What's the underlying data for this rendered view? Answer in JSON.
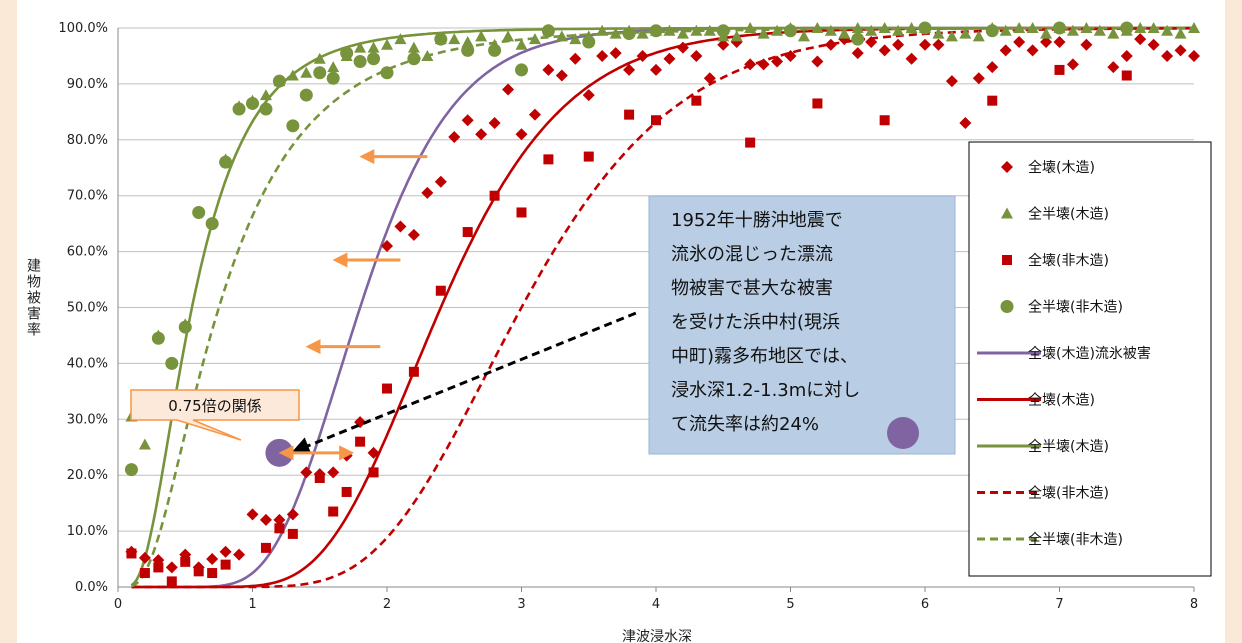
{
  "chart_data": {
    "type": "scatter",
    "xlabel": "津波浸水深",
    "ylabel": "建物被害率",
    "xlim": [
      0,
      8
    ],
    "ylim": [
      0,
      100
    ],
    "x_ticks": [
      "0",
      "1",
      "2",
      "3",
      "4",
      "5",
      "6",
      "7",
      "8"
    ],
    "y_ticks": [
      "0.0%",
      "10.0%",
      "20.0%",
      "30.0%",
      "40.0%",
      "50.0%",
      "60.0%",
      "70.0%",
      "80.0%",
      "90.0%",
      "100.0%"
    ],
    "grid": "horizontal",
    "legend_position": "right",
    "scatter_series": [
      {
        "name": "全壊(木造)",
        "marker": "diamond",
        "color": "#c00000",
        "points": [
          [
            0.1,
            6.3
          ],
          [
            0.2,
            5.2
          ],
          [
            0.3,
            4.8
          ],
          [
            0.4,
            3.5
          ],
          [
            0.5,
            5.8
          ],
          [
            0.6,
            3.5
          ],
          [
            0.7,
            5.0
          ],
          [
            0.8,
            6.3
          ],
          [
            0.9,
            5.8
          ],
          [
            1.0,
            13.0
          ],
          [
            1.1,
            12.0
          ],
          [
            1.2,
            12.0
          ],
          [
            1.3,
            13.0
          ],
          [
            1.4,
            20.5
          ],
          [
            1.5,
            20.2
          ],
          [
            1.6,
            20.5
          ],
          [
            1.7,
            23.5
          ],
          [
            1.8,
            29.5
          ],
          [
            1.9,
            24.0
          ],
          [
            2.0,
            61.0
          ],
          [
            2.1,
            64.5
          ],
          [
            2.2,
            63.0
          ],
          [
            2.3,
            70.5
          ],
          [
            2.4,
            72.5
          ],
          [
            2.5,
            80.5
          ],
          [
            2.6,
            83.5
          ],
          [
            2.7,
            81.0
          ],
          [
            2.8,
            83.0
          ],
          [
            2.9,
            89.0
          ],
          [
            3.0,
            81.0
          ],
          [
            3.1,
            84.5
          ],
          [
            3.2,
            92.5
          ],
          [
            3.3,
            91.5
          ],
          [
            3.4,
            94.5
          ],
          [
            3.5,
            88.0
          ],
          [
            3.6,
            95.0
          ],
          [
            3.7,
            95.5
          ],
          [
            3.8,
            92.5
          ],
          [
            3.9,
            95.0
          ],
          [
            4.0,
            92.5
          ],
          [
            4.1,
            94.5
          ],
          [
            4.2,
            96.5
          ],
          [
            4.3,
            95.0
          ],
          [
            4.4,
            91.0
          ],
          [
            4.5,
            97.0
          ],
          [
            4.6,
            97.5
          ],
          [
            4.7,
            93.5
          ],
          [
            4.8,
            93.5
          ],
          [
            4.9,
            94.0
          ],
          [
            5.0,
            95.0
          ],
          [
            5.2,
            94.0
          ],
          [
            5.3,
            97.0
          ],
          [
            5.4,
            98.0
          ],
          [
            5.5,
            95.5
          ],
          [
            5.6,
            97.5
          ],
          [
            5.7,
            96.0
          ],
          [
            5.8,
            97.0
          ],
          [
            5.9,
            94.5
          ],
          [
            6.0,
            97.0
          ],
          [
            6.1,
            97.0
          ],
          [
            6.2,
            90.5
          ],
          [
            6.3,
            83.0
          ],
          [
            6.4,
            91.0
          ],
          [
            6.5,
            93.0
          ],
          [
            6.6,
            96.0
          ],
          [
            6.7,
            97.5
          ],
          [
            6.8,
            96.0
          ],
          [
            6.9,
            97.5
          ],
          [
            7.0,
            97.5
          ],
          [
            7.1,
            93.5
          ],
          [
            7.2,
            97.0
          ],
          [
            7.4,
            93.0
          ],
          [
            7.5,
            95.0
          ],
          [
            7.6,
            98.0
          ],
          [
            7.7,
            97.0
          ],
          [
            7.8,
            95.0
          ],
          [
            7.9,
            96.0
          ],
          [
            8.0,
            95.0
          ]
        ]
      },
      {
        "name": "全半壊(木造)",
        "marker": "triangle",
        "color": "#77933c",
        "points": [
          [
            0.1,
            30.5
          ],
          [
            0.2,
            25.5
          ],
          [
            0.3,
            45.0
          ],
          [
            0.5,
            47.0
          ],
          [
            0.8,
            76.5
          ],
          [
            0.9,
            86.0
          ],
          [
            1.0,
            87.0
          ],
          [
            1.1,
            88.0
          ],
          [
            1.2,
            90.5
          ],
          [
            1.3,
            91.5
          ],
          [
            1.4,
            92.0
          ],
          [
            1.5,
            94.5
          ],
          [
            1.6,
            93.0
          ],
          [
            1.7,
            95.0
          ],
          [
            1.8,
            96.5
          ],
          [
            1.9,
            96.5
          ],
          [
            2.0,
            97.0
          ],
          [
            2.1,
            98.0
          ],
          [
            2.2,
            96.5
          ],
          [
            2.3,
            95.0
          ],
          [
            2.4,
            98.0
          ],
          [
            2.5,
            98.0
          ],
          [
            2.6,
            97.5
          ],
          [
            2.7,
            98.5
          ],
          [
            2.8,
            97.0
          ],
          [
            2.9,
            98.5
          ],
          [
            3.0,
            97.0
          ],
          [
            3.1,
            98.0
          ],
          [
            3.2,
            99.5
          ],
          [
            3.3,
            98.5
          ],
          [
            3.4,
            98.0
          ],
          [
            3.5,
            98.5
          ],
          [
            3.6,
            99.5
          ],
          [
            3.7,
            99.0
          ],
          [
            3.8,
            99.5
          ],
          [
            3.9,
            99.0
          ],
          [
            4.0,
            99.5
          ],
          [
            4.1,
            99.5
          ],
          [
            4.2,
            99.0
          ],
          [
            4.3,
            99.5
          ],
          [
            4.4,
            99.5
          ],
          [
            4.5,
            98.5
          ],
          [
            4.6,
            98.5
          ],
          [
            4.7,
            100
          ],
          [
            4.8,
            99.0
          ],
          [
            4.9,
            99.5
          ],
          [
            5.0,
            100
          ],
          [
            5.1,
            98.5
          ],
          [
            5.2,
            100
          ],
          [
            5.3,
            99.5
          ],
          [
            5.4,
            99.0
          ],
          [
            5.5,
            100
          ],
          [
            5.6,
            99.5
          ],
          [
            5.7,
            100
          ],
          [
            5.8,
            99.5
          ],
          [
            5.9,
            100
          ],
          [
            6.0,
            100
          ],
          [
            6.1,
            99.0
          ],
          [
            6.2,
            98.5
          ],
          [
            6.3,
            99.0
          ],
          [
            6.4,
            98.5
          ],
          [
            6.5,
            100
          ],
          [
            6.6,
            99.5
          ],
          [
            6.7,
            100
          ],
          [
            6.8,
            100
          ],
          [
            6.9,
            99.0
          ],
          [
            7.0,
            100
          ],
          [
            7.1,
            99.5
          ],
          [
            7.2,
            100
          ],
          [
            7.3,
            99.5
          ],
          [
            7.4,
            99.0
          ],
          [
            7.5,
            99.5
          ],
          [
            7.6,
            100
          ],
          [
            7.7,
            100
          ],
          [
            7.8,
            99.5
          ],
          [
            7.9,
            99.0
          ],
          [
            8.0,
            100
          ]
        ]
      },
      {
        "name": "全壊(非木造)",
        "marker": "square",
        "color": "#c00000",
        "points": [
          [
            0.1,
            6.0
          ],
          [
            0.2,
            2.5
          ],
          [
            0.3,
            3.5
          ],
          [
            0.4,
            1.0
          ],
          [
            0.5,
            4.5
          ],
          [
            0.6,
            2.8
          ],
          [
            0.7,
            2.5
          ],
          [
            0.8,
            4.0
          ],
          [
            1.1,
            7.0
          ],
          [
            1.2,
            10.5
          ],
          [
            1.3,
            9.5
          ],
          [
            1.5,
            19.5
          ],
          [
            1.6,
            13.5
          ],
          [
            1.7,
            17.0
          ],
          [
            1.8,
            26.0
          ],
          [
            1.9,
            20.5
          ],
          [
            2.0,
            35.5
          ],
          [
            2.2,
            38.5
          ],
          [
            2.4,
            53.0
          ],
          [
            2.6,
            63.5
          ],
          [
            2.8,
            70.0
          ],
          [
            3.0,
            67.0
          ],
          [
            3.2,
            76.5
          ],
          [
            3.5,
            77.0
          ],
          [
            3.8,
            84.5
          ],
          [
            4.0,
            83.5
          ],
          [
            4.3,
            87.0
          ],
          [
            4.7,
            79.5
          ],
          [
            5.2,
            86.5
          ],
          [
            5.7,
            83.5
          ],
          [
            6.5,
            87.0
          ],
          [
            7.0,
            92.5
          ],
          [
            7.5,
            91.5
          ]
        ]
      },
      {
        "name": "全半壊(非木造)",
        "marker": "circle",
        "color": "#77933c",
        "points": [
          [
            0.1,
            21.0
          ],
          [
            0.3,
            44.5
          ],
          [
            0.4,
            40.0
          ],
          [
            0.5,
            46.5
          ],
          [
            0.6,
            67.0
          ],
          [
            0.7,
            65.0
          ],
          [
            0.8,
            76.0
          ],
          [
            0.9,
            85.5
          ],
          [
            1.0,
            86.5
          ],
          [
            1.1,
            85.5
          ],
          [
            1.2,
            90.5
          ],
          [
            1.3,
            82.5
          ],
          [
            1.4,
            88.0
          ],
          [
            1.5,
            92.0
          ],
          [
            1.6,
            91.0
          ],
          [
            1.7,
            95.5
          ],
          [
            1.8,
            94.0
          ],
          [
            1.9,
            94.5
          ],
          [
            2.0,
            92.0
          ],
          [
            2.2,
            94.5
          ],
          [
            2.4,
            98.0
          ],
          [
            2.6,
            96.0
          ],
          [
            2.8,
            96.0
          ],
          [
            3.0,
            92.5
          ],
          [
            3.2,
            99.5
          ],
          [
            3.5,
            97.5
          ],
          [
            3.8,
            99.0
          ],
          [
            4.0,
            99.5
          ],
          [
            4.5,
            99.5
          ],
          [
            5.0,
            99.5
          ],
          [
            5.5,
            98.0
          ],
          [
            6.0,
            100
          ],
          [
            6.5,
            99.5
          ],
          [
            7.0,
            100
          ],
          [
            7.5,
            100
          ]
        ]
      }
    ],
    "line_series": [
      {
        "name": "全壊(木造)流氷被害",
        "color": "#8064a2",
        "dash": "solid",
        "median": 1.8,
        "sigma": 0.3
      },
      {
        "name": "全壊(木造)",
        "color": "#c00000",
        "dash": "solid",
        "median": 2.4,
        "sigma": 0.3
      },
      {
        "name": "全半壊(木造)",
        "color": "#77933c",
        "dash": "solid",
        "median": 0.55,
        "sigma": 0.62
      },
      {
        "name": "全壊(非木造)",
        "color": "#c00000",
        "dash": "dashed",
        "median": 3.0,
        "sigma": 0.3
      },
      {
        "name": "全半壊(非木造)",
        "color": "#77933c",
        "dash": "dashed",
        "median": 0.75,
        "sigma": 0.68
      }
    ],
    "highlight_point": {
      "x": 1.2,
      "y": 24,
      "color": "#8064a2"
    },
    "shift_arrows": [
      {
        "from": [
          2.3,
          77
        ],
        "to": [
          1.85,
          77
        ]
      },
      {
        "from": [
          2.1,
          58.5
        ],
        "to": [
          1.65,
          58.5
        ]
      },
      {
        "from": [
          1.95,
          43
        ],
        "to": [
          1.45,
          43
        ]
      },
      {
        "from": [
          1.7,
          24
        ],
        "to": [
          1.25,
          24
        ]
      }
    ],
    "note_pointer": {
      "from": [
        3.85,
        49
      ],
      "to": [
        1.25,
        24
      ]
    }
  },
  "legend": {
    "items": [
      {
        "label": "全壊(木造)",
        "marker": "diamond",
        "color": "#c00000"
      },
      {
        "label": "全半壊(木造)",
        "marker": "triangle",
        "color": "#77933c"
      },
      {
        "label": "全壊(非木造)",
        "marker": "square",
        "color": "#c00000"
      },
      {
        "label": "全半壊(非木造)",
        "marker": "circle",
        "color": "#77933c"
      },
      {
        "label": "全壊(木造)流氷被害",
        "marker": "line",
        "color": "#8064a2"
      },
      {
        "label": "全壊(木造)",
        "marker": "line",
        "color": "#c00000"
      },
      {
        "label": "全半壊(木造)",
        "marker": "line",
        "color": "#77933c"
      },
      {
        "label": "全壊(非木造)",
        "marker": "dashed",
        "color": "#c00000"
      },
      {
        "label": "全半壊(非木造)",
        "marker": "dashed",
        "color": "#77933c"
      }
    ]
  },
  "annotation": {
    "lines": [
      "1952年十勝沖地震で",
      "流氷の混じった漂流",
      "物被害で甚大な被害",
      "を受けた浜中村(現浜",
      "中町)霧多布地区では、",
      "浸水深1.2-1.3mに対し",
      "て流失率は約24%"
    ],
    "bg": "#b9cde5"
  },
  "callout": {
    "text": "0.75倍の関係",
    "bg": "#fde9d9",
    "border": "#f79646"
  },
  "colors": {
    "arrow": "#f79646",
    "pointer": "#000000",
    "grid": "#c0c0c0"
  }
}
